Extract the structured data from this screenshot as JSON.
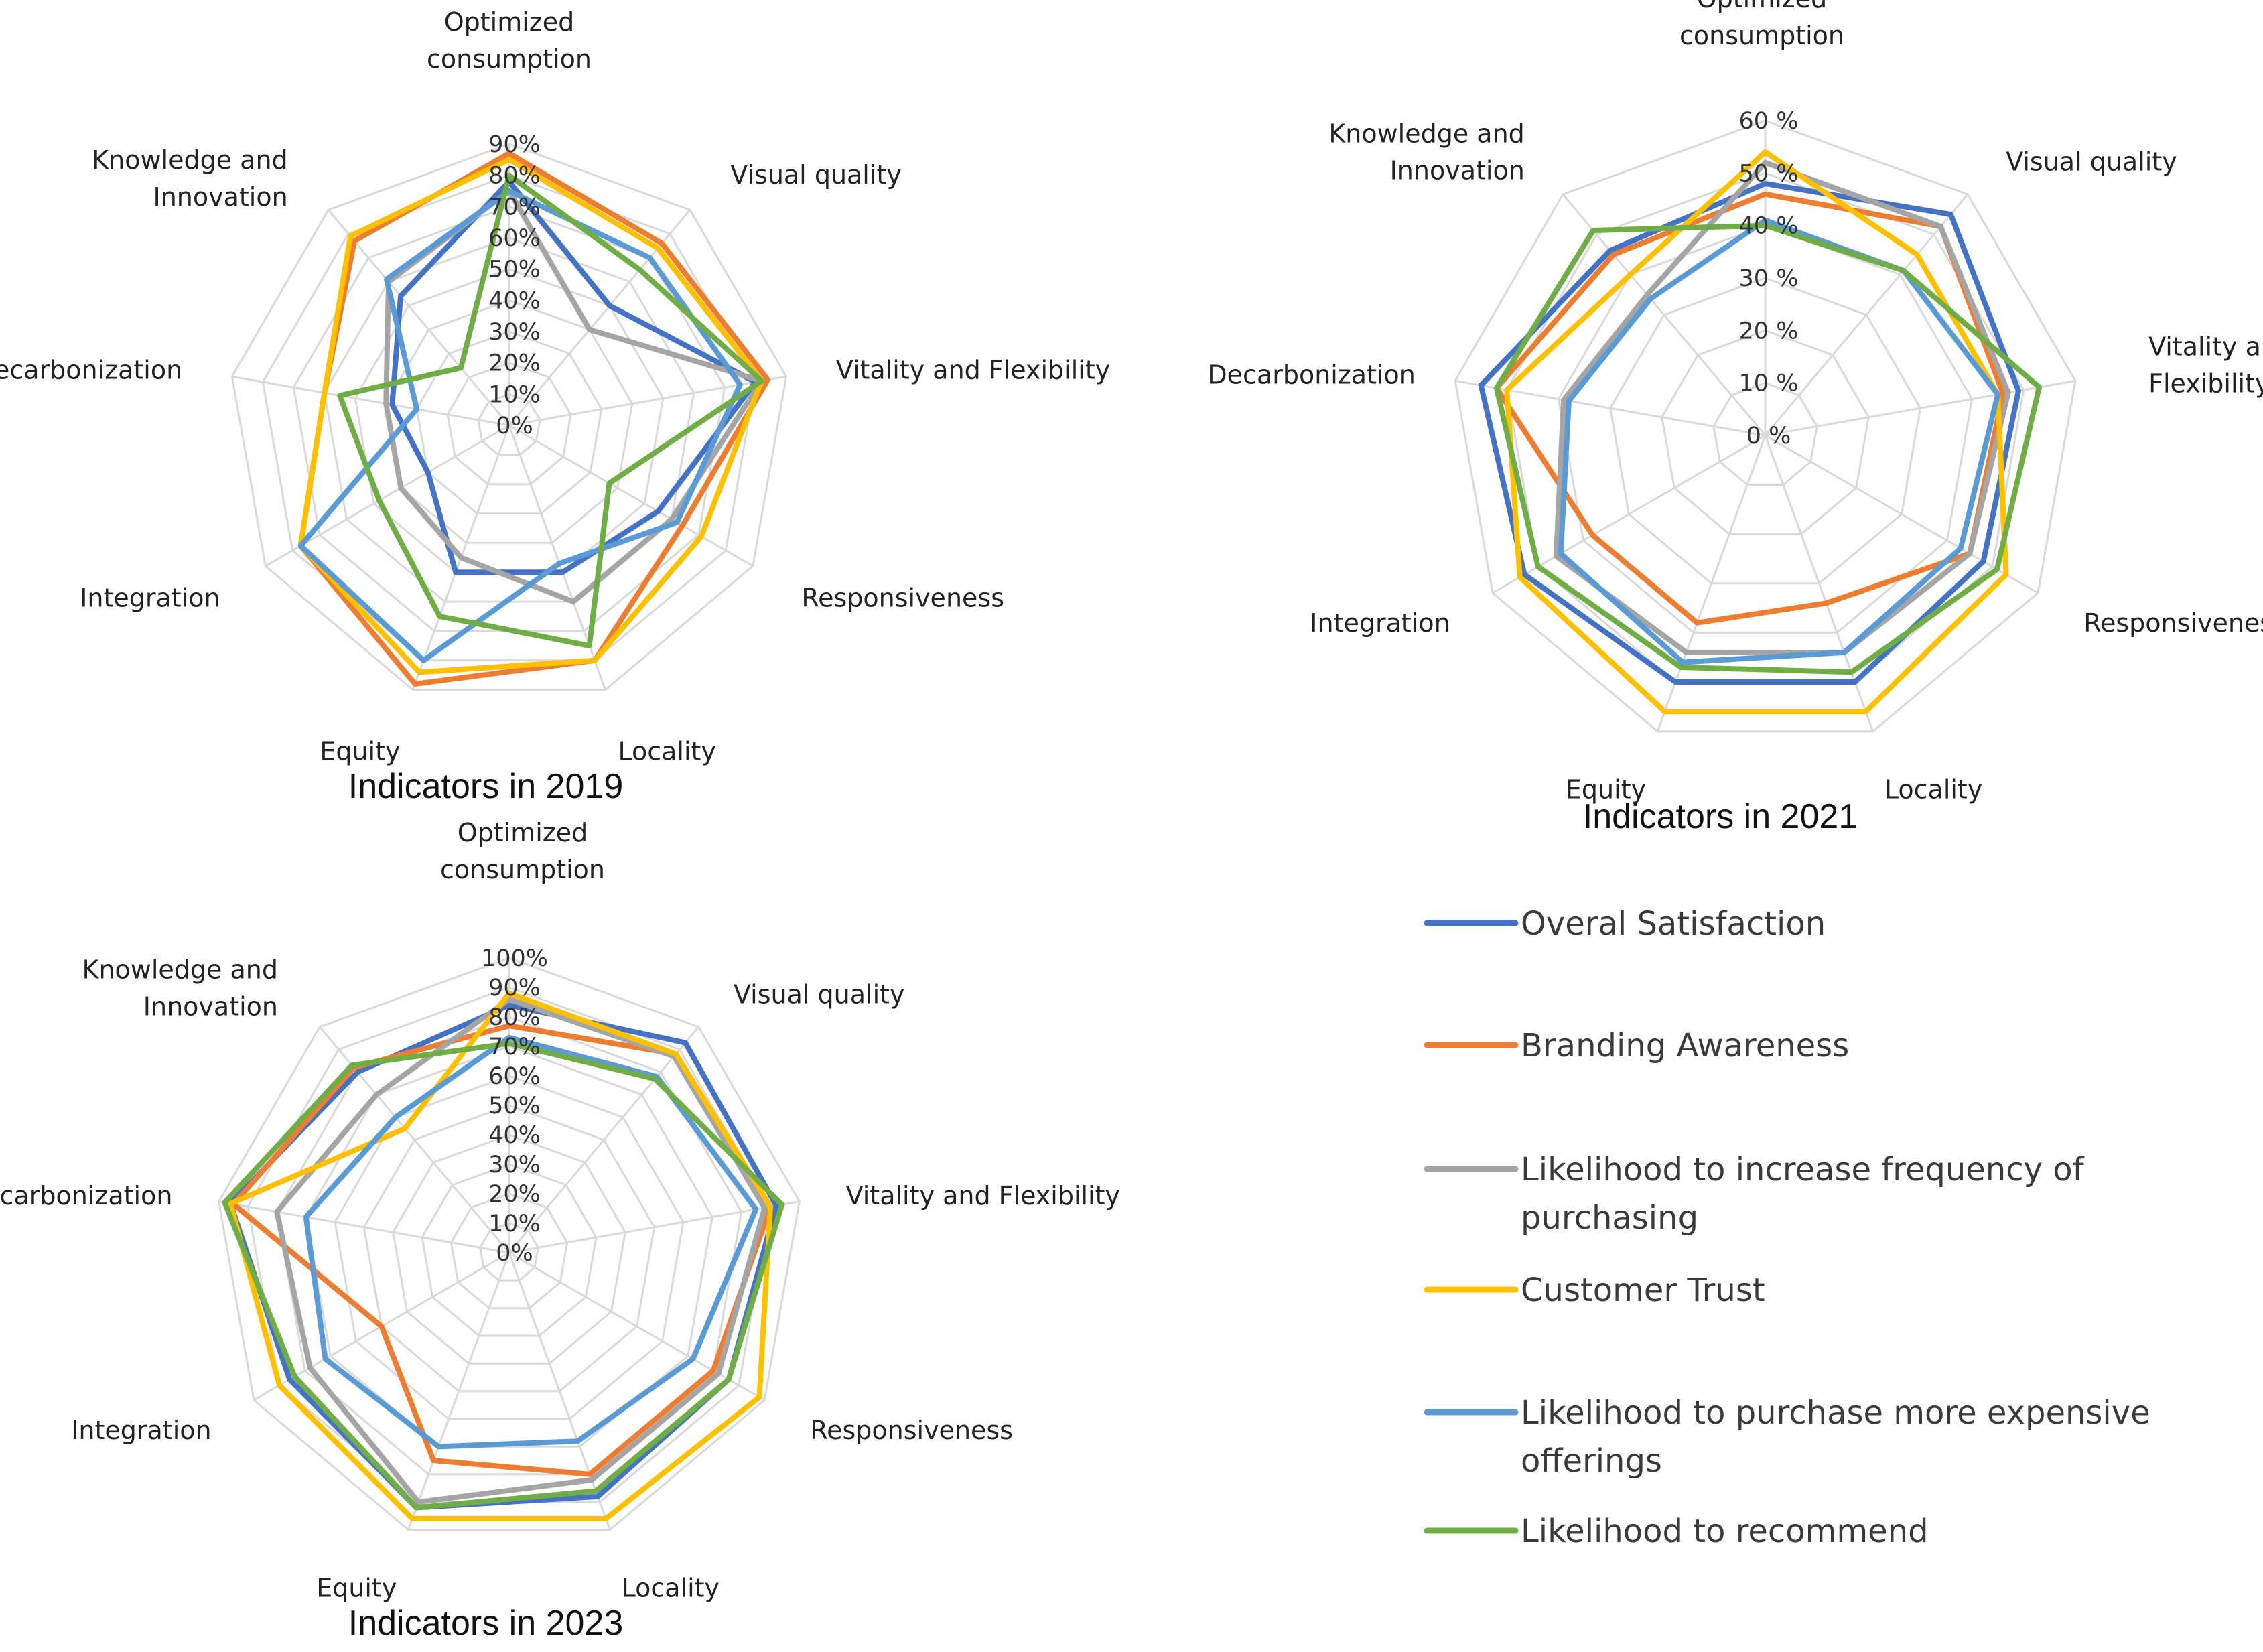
{
  "colors": {
    "series": [
      "#4472C4",
      "#ED7D31",
      "#A5A5A5",
      "#FFC000",
      "#5B9BD5",
      "#70AD47"
    ],
    "grid": "#d9d9d9"
  },
  "legend": {
    "items": [
      {
        "lines": [
          "Overal Satisfaction"
        ],
        "color": "#4472C4"
      },
      {
        "lines": [
          "Branding Awareness"
        ],
        "color": "#ED7D31"
      },
      {
        "lines": [
          "Likelihood to increase frequency of",
          "purchasing"
        ],
        "color": "#A5A5A5"
      },
      {
        "lines": [
          "Customer Trust"
        ],
        "color": "#FFC000"
      },
      {
        "lines": [
          "Likelihood to purchase more expensive",
          "offerings"
        ],
        "color": "#5B9BD5"
      },
      {
        "lines": [
          "Likelihood to recommend"
        ],
        "color": "#70AD47"
      }
    ]
  },
  "chart_data": [
    {
      "type": "radar",
      "title": "Indicators in 2019",
      "categories": [
        [
          "Optimized",
          "consumption"
        ],
        [
          "Visual quality"
        ],
        [
          "Vitality and Flexibility"
        ],
        [
          "Responsiveness"
        ],
        [
          "Locality"
        ],
        [
          "Equity"
        ],
        [
          "Integration"
        ],
        [
          "Decarbonization"
        ],
        [
          "Knowledge and",
          "Innovation"
        ]
      ],
      "ticks": [
        "0%",
        "10%",
        "20%",
        "30%",
        "40%",
        "50%",
        "60%",
        "70%",
        "80%",
        "90%"
      ],
      "max": 90,
      "series": [
        {
          "name": "Overal Satisfaction",
          "values": [
            78,
            50,
            80,
            55,
            50,
            50,
            30,
            38,
            54
          ]
        },
        {
          "name": "Branding Awareness",
          "values": [
            87,
            76,
            84,
            64,
            80,
            88,
            77,
            60,
            77
          ]
        },
        {
          "name": "Likelihood to increase frequency of purchasing",
          "values": [
            75,
            40,
            82,
            60,
            60,
            45,
            40,
            40,
            60
          ]
        },
        {
          "name": "Customer Trust",
          "values": [
            85,
            74,
            82,
            71,
            80,
            84,
            77,
            60,
            79
          ]
        },
        {
          "name": "Likelihood to purchase more expensive offerings",
          "values": [
            75,
            70,
            75,
            62,
            47,
            80,
            77,
            30,
            61
          ]
        },
        {
          "name": "Likelihood to recommend",
          "values": [
            80,
            65,
            82,
            37,
            75,
            65,
            48,
            55,
            24
          ]
        }
      ]
    },
    {
      "type": "radar",
      "title": "Indicators in 2021",
      "categories": [
        [
          "Optimized",
          "consumption"
        ],
        [
          "Visual quality"
        ],
        [
          "Vitality and",
          "Flexibility"
        ],
        [
          "Responsiveness"
        ],
        [
          "Locality"
        ],
        [
          "Equity"
        ],
        [
          "Integration"
        ],
        [
          "Decarbonization"
        ],
        [
          "Knowledge and",
          "Innovation"
        ]
      ],
      "ticks": [
        "0 %",
        "10 %",
        "20 %",
        "30 %",
        "40 %",
        "50 %",
        "60 %"
      ],
      "max": 60,
      "series": [
        {
          "name": "Overal Satisfaction",
          "values": [
            48,
            55,
            49,
            48,
            50,
            50,
            53,
            55,
            46
          ]
        },
        {
          "name": "Branding Awareness",
          "values": [
            46,
            52,
            46,
            45,
            34,
            38,
            38,
            52,
            45
          ]
        },
        {
          "name": "Likelihood to increase frequency of purchasing",
          "values": [
            52,
            52,
            47,
            45,
            44,
            44,
            46,
            39,
            35
          ]
        },
        {
          "name": "Customer Trust",
          "values": [
            54,
            45,
            45,
            53,
            56,
            56,
            54,
            50,
            40
          ]
        },
        {
          "name": "Likelihood to purchase more expensive offerings",
          "values": [
            41,
            41,
            45,
            43,
            44,
            46,
            45,
            38,
            34
          ]
        },
        {
          "name": "Likelihood to recommend",
          "values": [
            40,
            41,
            53,
            51,
            48,
            47,
            50,
            52,
            51
          ]
        }
      ]
    },
    {
      "type": "radar",
      "title": "Indicators in 2023",
      "categories": [
        [
          "Optimized",
          "consumption"
        ],
        [
          "Visual quality"
        ],
        [
          "Vitality and Flexibility"
        ],
        [
          "Responsiveness"
        ],
        [
          "Locality"
        ],
        [
          "Equity"
        ],
        [
          "Integration"
        ],
        [
          "Decarbonization"
        ],
        [
          "Knowledge and",
          "Innovation"
        ]
      ],
      "ticks": [
        "0%",
        "10%",
        "20%",
        "30%",
        "40%",
        "50%",
        "60%",
        "70%",
        "80%",
        "90%",
        "100%"
      ],
      "max": 100,
      "series": [
        {
          "name": "Overal Satisfaction",
          "values": [
            84,
            93,
            92,
            86,
            88,
            92,
            86,
            96,
            80
          ]
        },
        {
          "name": "Branding Awareness",
          "values": [
            77,
            88,
            90,
            80,
            80,
            75,
            50,
            95,
            82
          ]
        },
        {
          "name": "Likelihood to increase frequency of purchasing",
          "values": [
            86,
            87,
            88,
            82,
            82,
            90,
            78,
            80,
            70
          ]
        },
        {
          "name": "Customer Trust",
          "values": [
            88,
            88,
            90,
            98,
            96,
            96,
            90,
            96,
            55
          ]
        },
        {
          "name": "Likelihood to purchase more expensive offerings",
          "values": [
            73,
            78,
            85,
            72,
            68,
            70,
            72,
            70,
            60
          ]
        },
        {
          "name": "Likelihood to recommend",
          "values": [
            71,
            77,
            94,
            86,
            86,
            92,
            84,
            98,
            83
          ]
        }
      ]
    }
  ]
}
